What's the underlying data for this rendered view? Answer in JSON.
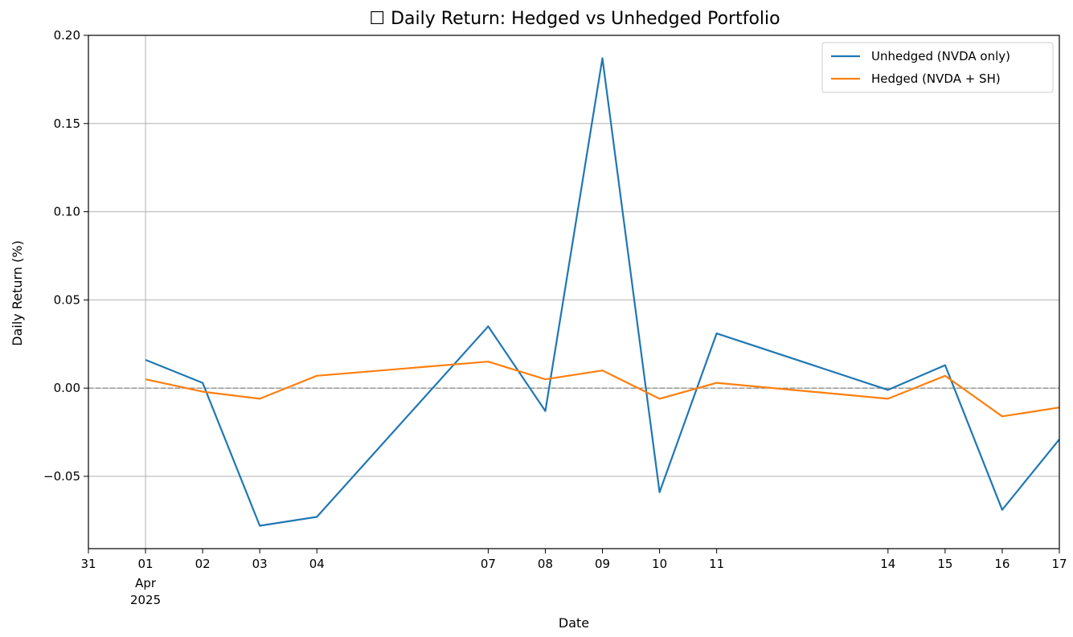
{
  "chart_data": {
    "type": "line",
    "title": "📉 Daily Return: Hedged vs Unhedged Portfolio",
    "title_text": "Daily Return: Hedged vs Unhedged Portfolio",
    "xlabel": "Date",
    "ylabel": "Daily Return (%)",
    "x": [
      "2025-04-01",
      "2025-04-02",
      "2025-04-03",
      "2025-04-04",
      "2025-04-07",
      "2025-04-08",
      "2025-04-09",
      "2025-04-10",
      "2025-04-11",
      "2025-04-14",
      "2025-04-15",
      "2025-04-16",
      "2025-04-17"
    ],
    "xlim": [
      "2025-03-31",
      "2025-04-17"
    ],
    "ylim": [
      -0.091,
      0.2
    ],
    "x_ticks": [
      "31",
      "01",
      "02",
      "03",
      "04",
      "07",
      "08",
      "09",
      "10",
      "11",
      "14",
      "15",
      "16",
      "17"
    ],
    "x_tick_sub": [
      "Apr",
      "2025"
    ],
    "y_ticks": [
      "0.20",
      "0.15",
      "0.10",
      "0.05",
      "0.00",
      "−0.05"
    ],
    "grid": true,
    "legend_position": "top-right",
    "reference_line": 0,
    "series": [
      {
        "name": "Unhedged (NVDA only)",
        "color": "#1f77b4",
        "values": [
          0.016,
          0.003,
          -0.078,
          -0.073,
          0.035,
          -0.013,
          0.187,
          -0.059,
          0.031,
          -0.001,
          0.013,
          -0.069,
          -0.029
        ]
      },
      {
        "name": "Hedged (NVDA + SH)",
        "color": "#ff7f0e",
        "values": [
          0.005,
          -0.002,
          -0.006,
          0.007,
          0.015,
          0.005,
          0.01,
          -0.006,
          0.003,
          -0.006,
          0.007,
          -0.016,
          -0.011
        ]
      }
    ]
  }
}
